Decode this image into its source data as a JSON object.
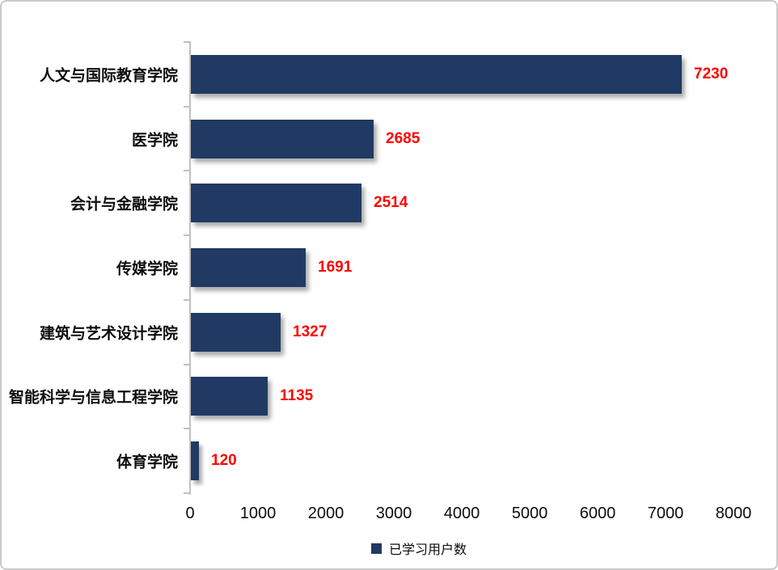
{
  "chart_data": {
    "type": "bar",
    "orientation": "horizontal",
    "title": "",
    "xlabel": "",
    "ylabel": "",
    "categories": [
      "人文与国际教育学院",
      "医学院",
      "会计与金融学院",
      "传媒学院",
      "建筑与艺术设计学院",
      "智能科学与信息工程学院",
      "体育学院"
    ],
    "values": [
      7230,
      2685,
      2514,
      1691,
      1327,
      1135,
      120
    ],
    "xlim": [
      0,
      8000
    ],
    "xticks": [
      0,
      1000,
      2000,
      3000,
      4000,
      5000,
      6000,
      7000,
      8000
    ],
    "grid": false,
    "legend_position": "bottom",
    "legend": [
      {
        "label": "已学习用户数",
        "color": "#203a63"
      }
    ],
    "value_labels_shown": true
  },
  "colors": {
    "bar": "#203a63",
    "value": "#ff0000",
    "axis": "#c0c0c0",
    "border": "#c9c9c9",
    "text": "#0d0d0d"
  }
}
